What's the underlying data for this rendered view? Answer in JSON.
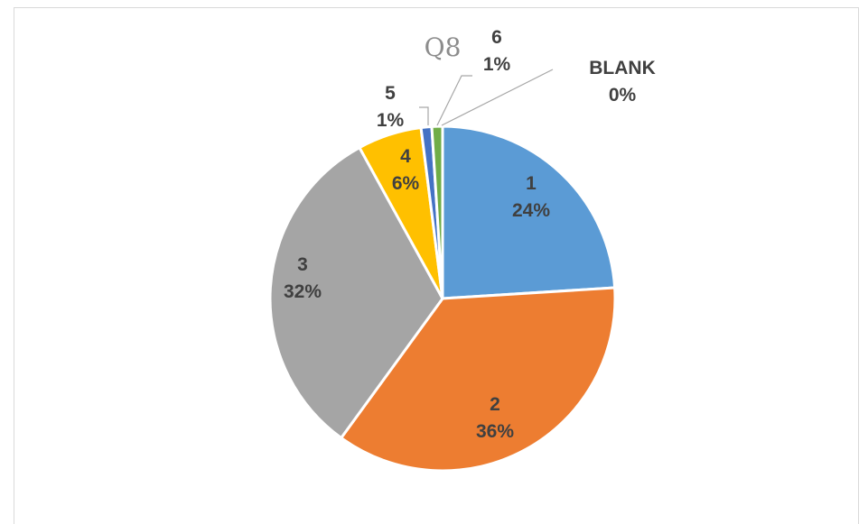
{
  "header_text": "",
  "chart_data": {
    "type": "pie",
    "title": "Q8",
    "slices": [
      {
        "category": "1",
        "value": 24,
        "label": "24%",
        "color": "#5B9BD5"
      },
      {
        "category": "2",
        "value": 36,
        "label": "36%",
        "color": "#ED7D31"
      },
      {
        "category": "3",
        "value": 32,
        "label": "32%",
        "color": "#A5A5A5"
      },
      {
        "category": "4",
        "value": 6,
        "label": "6%",
        "color": "#FFC000"
      },
      {
        "category": "5",
        "value": 1,
        "label": "1%",
        "color": "#4472C4"
      },
      {
        "category": "6",
        "value": 1,
        "label": "1%",
        "color": "#70AD47"
      },
      {
        "category": "BLANK",
        "value": 0,
        "label": "0%",
        "color": "#264478"
      }
    ],
    "legend": "none",
    "leader_line_color": "#a6a6a6"
  }
}
